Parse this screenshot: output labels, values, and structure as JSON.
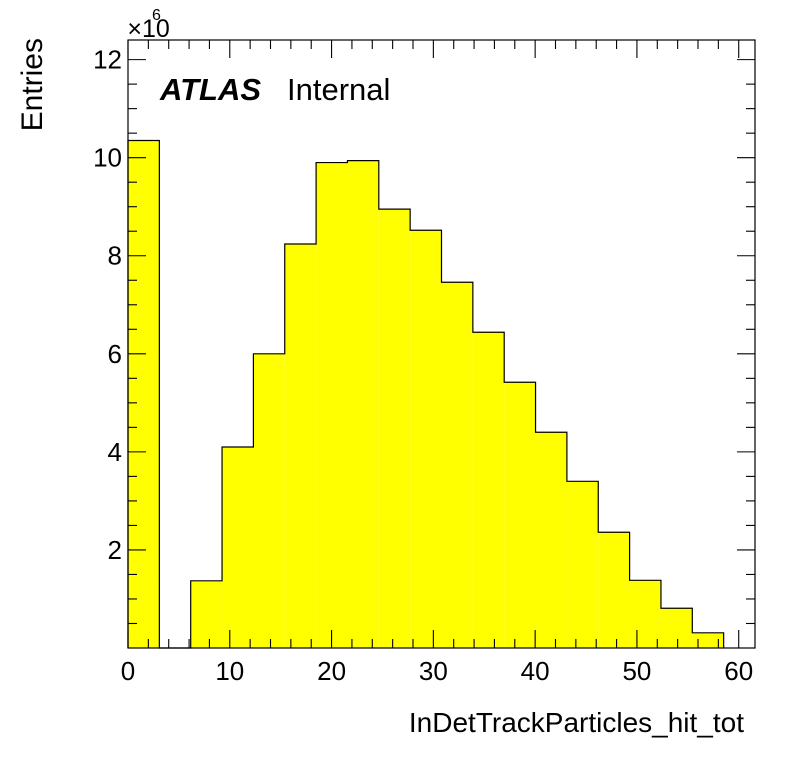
{
  "chart_data": {
    "type": "bar",
    "style": "step-histogram",
    "xlabel": "InDetTrackParticles_hit_tot",
    "ylabel": "Entries",
    "y_multiplier_base": "10",
    "y_multiplier_exponent": "6",
    "label_bold": "ATLAS",
    "label_regular": "Internal",
    "fill_color": "#ffff00",
    "line_color": "#000000",
    "xlim": [
      0,
      61.6
    ],
    "ylim": [
      0,
      12.4
    ],
    "x_major_ticks": [
      0,
      10,
      20,
      30,
      40,
      50,
      60
    ],
    "y_major_ticks": [
      2,
      4,
      6,
      8,
      10,
      12
    ],
    "bin_width": 3.08,
    "bins": [
      {
        "low": 0.0,
        "high": 3.08,
        "value": 10.35
      },
      {
        "low": 3.08,
        "high": 6.16,
        "value": 0.0
      },
      {
        "low": 6.16,
        "high": 9.24,
        "value": 1.37
      },
      {
        "low": 9.24,
        "high": 12.32,
        "value": 4.1
      },
      {
        "low": 12.32,
        "high": 15.4,
        "value": 6.0
      },
      {
        "low": 15.4,
        "high": 18.48,
        "value": 8.24
      },
      {
        "low": 18.48,
        "high": 21.56,
        "value": 9.9
      },
      {
        "low": 21.56,
        "high": 24.64,
        "value": 9.94
      },
      {
        "low": 24.64,
        "high": 27.72,
        "value": 8.95
      },
      {
        "low": 27.72,
        "high": 30.8,
        "value": 8.52
      },
      {
        "low": 30.8,
        "high": 33.88,
        "value": 7.46
      },
      {
        "low": 33.88,
        "high": 36.96,
        "value": 6.44
      },
      {
        "low": 36.96,
        "high": 40.04,
        "value": 5.42
      },
      {
        "low": 40.04,
        "high": 43.12,
        "value": 4.4
      },
      {
        "low": 43.12,
        "high": 46.2,
        "value": 3.4
      },
      {
        "low": 46.2,
        "high": 49.28,
        "value": 2.36
      },
      {
        "low": 49.28,
        "high": 52.36,
        "value": 1.38
      },
      {
        "low": 52.36,
        "high": 55.44,
        "value": 0.81
      },
      {
        "low": 55.44,
        "high": 58.52,
        "value": 0.31
      }
    ]
  }
}
